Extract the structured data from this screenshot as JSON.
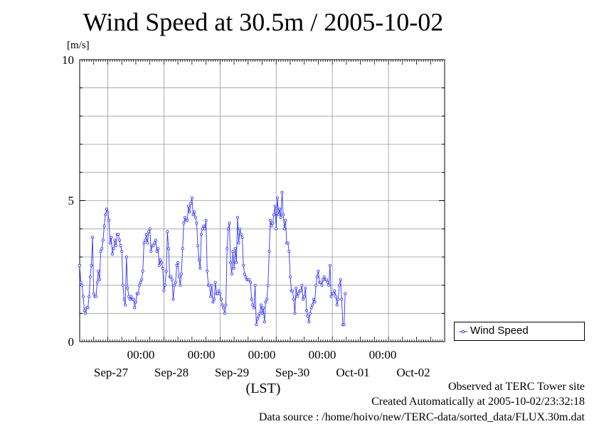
{
  "title": "Wind Speed at 30.5m / 2005-10-02",
  "unit": "[m/s]",
  "y_ticks": [
    "10",
    "5",
    "0"
  ],
  "x_time_labels": [
    "00:00",
    "00:00",
    "00:00",
    "00:00",
    "00:00"
  ],
  "x_date_labels": [
    "Sep-27",
    "Sep-28",
    "Sep-29",
    "Sep-30",
    "Oct-01",
    "Oct-02"
  ],
  "xlabel": "(LST)",
  "legend": {
    "label": "Wind Speed"
  },
  "footer": {
    "line1": "Observed at TERC Tower site",
    "line2": "Created Automatically at 2005-10-02/23:32:18",
    "line3": "Data source : /home/hoivo/new/TERC-data/sorted_data/FLUX.30m.dat"
  },
  "colors": {
    "series": "#3333ff",
    "grid": "#999999",
    "axis": "#000000"
  },
  "chart_data": {
    "type": "line",
    "title": "Wind Speed at 30.5m / 2005-10-02",
    "xlabel": "(LST)",
    "ylabel": "[m/s]",
    "ylim": [
      0,
      10
    ],
    "xlim": [
      "2005-09-26 12:00",
      "2005-10-02 24:00"
    ],
    "grid": true,
    "legend_position": "right",
    "series": [
      {
        "name": "Wind Speed",
        "x_start": "2005-09-26 12:00",
        "x_step_hours": 0.5,
        "values": [
          2.7,
          2.1,
          2.0,
          1.6,
          1.1,
          1.0,
          1.2,
          1.2,
          1.6,
          2.3,
          2.7,
          3.7,
          1.7,
          1.6,
          1.6,
          2.1,
          2.5,
          2.2,
          3.2,
          3.3,
          3.6,
          4.1,
          4.5,
          4.7,
          4.6,
          4.3,
          3.5,
          3.7,
          3.1,
          3.3,
          3.6,
          3.4,
          3.8,
          3.8,
          3.6,
          3.4,
          3.2,
          2.0,
          1.5,
          1.3,
          3.0,
          1.9,
          1.6,
          1.5,
          1.6,
          1.5,
          1.5,
          1.2,
          1.4,
          1.7,
          1.7,
          2.0,
          2.1,
          2.2,
          2.5,
          3.5,
          3.6,
          3.8,
          3.5,
          3.9,
          4.0,
          3.2,
          3.4,
          3.4,
          3.5,
          3.6,
          3.2,
          3.3,
          2.7,
          2.9,
          2.8,
          2.6,
          1.8,
          2.0,
          2.5,
          3.9,
          3.3,
          2.3,
          2.3,
          2.2,
          1.5,
          2.0,
          2.1,
          2.7,
          2.8,
          2.3,
          2.0,
          2.4,
          3.3,
          4.2,
          4.4,
          4.3,
          4.3,
          4.8,
          4.6,
          4.9,
          5.1,
          4.5,
          4.6,
          4.4,
          4.2,
          3.4,
          2.9,
          2.6,
          3.8,
          4.0,
          4.1,
          4.0,
          4.3,
          2.5,
          2.0,
          2.0,
          1.6,
          2.0,
          1.4,
          1.5,
          2.1,
          1.7,
          1.7,
          1.8,
          1.7,
          1.5,
          1.3,
          1.2,
          1.0,
          1.3,
          3.3,
          4.0,
          4.2,
          2.8,
          2.4,
          3.2,
          2.6,
          3.3,
          2.8,
          4.4,
          3.5,
          4.0,
          3.8,
          3.7,
          2.7,
          2.4,
          2.3,
          2.2,
          2.2,
          2.2,
          2.1,
          1.5,
          1.3,
          1.2,
          2.0,
          0.6,
          0.8,
          0.9,
          1.0,
          1.3,
          1.0,
          1.2,
          0.7,
          1.4,
          1.5,
          2.0,
          3.2,
          4.3,
          4.1,
          4.2,
          4.5,
          4.8,
          4.0,
          5.1,
          4.5,
          4.7,
          4.4,
          5.3,
          4.5,
          4.0,
          4.3,
          3.5,
          3.5,
          3.2,
          2.3,
          1.8,
          1.8,
          1.5,
          1.0,
          1.9,
          1.6,
          1.7,
          1.8,
          1.8,
          2.0,
          1.5,
          1.6,
          1.9,
          1.1,
          0.9,
          0.7,
          1.0,
          1.2,
          1.3,
          1.5,
          1.4,
          2.0,
          2.3,
          2.5,
          2.1,
          2.1,
          2.0,
          2.2,
          2.3,
          2.2,
          2.2,
          2.1,
          2.0,
          2.7,
          1.6,
          1.7,
          1.7,
          1.8,
          1.6,
          1.3,
          1.5,
          2.0,
          2.2,
          1.5,
          0.6,
          0.6,
          1.7
        ]
      }
    ]
  }
}
